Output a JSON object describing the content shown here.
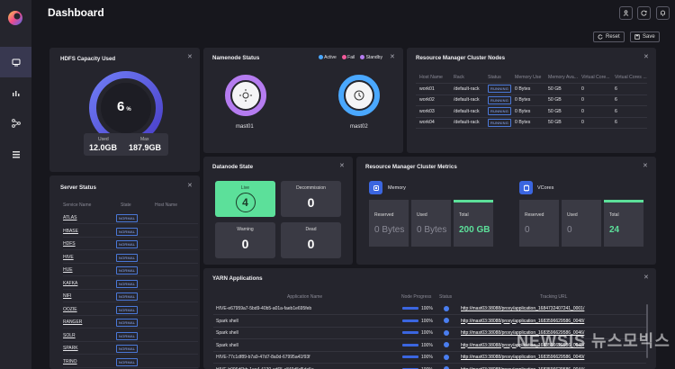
{
  "header": {
    "title": "Dashboard",
    "reset_label": "Reset",
    "save_label": "Save"
  },
  "hdfs": {
    "title": "HDFS Capacity Used",
    "percent": "6",
    "percent_sign": "%",
    "used_label": "Used",
    "used_value": "12.0GB",
    "max_label": "Max",
    "max_value": "187.9GB"
  },
  "namenode": {
    "title": "Namenode Status",
    "legend": [
      {
        "label": "Active",
        "color": "#4aa8ff"
      },
      {
        "label": "Fail",
        "color": "#f25a9a"
      },
      {
        "label": "Standby",
        "color": "#b57cf0"
      }
    ],
    "nodes": [
      {
        "name": "mast01",
        "icon": "sun-icon",
        "color": "#b57cf0"
      },
      {
        "name": "mast02",
        "icon": "clock-icon",
        "color": "#4aa8ff"
      }
    ]
  },
  "rm_nodes": {
    "title": "Resource Manager Cluster Nodes",
    "columns": [
      "Host Name",
      "Rack",
      "Status",
      "Memory Use",
      "Memory Ava...",
      "Virtual Core...",
      "Virtual Cores ..."
    ],
    "rows": [
      [
        "work01",
        "/default-rack",
        "RUNNING",
        "0 Bytes",
        "50 GB",
        "0",
        "6"
      ],
      [
        "work02",
        "/default-rack",
        "RUNNING",
        "0 Bytes",
        "50 GB",
        "0",
        "6"
      ],
      [
        "work03",
        "/default-rack",
        "RUNNING",
        "0 Bytes",
        "50 GB",
        "0",
        "6"
      ],
      [
        "work04",
        "/default-rack",
        "RUNNING",
        "0 Bytes",
        "50 GB",
        "0",
        "6"
      ]
    ]
  },
  "datanode": {
    "title": "Datanode State",
    "live_label": "Live",
    "live_value": "4",
    "decom_label": "Decommission",
    "decom_value": "0",
    "warning_label": "Warning",
    "warning_value": "0",
    "dead_label": "Dead",
    "dead_value": "0"
  },
  "rm_metrics": {
    "title": "Resource Manager Cluster Metrics",
    "memory": {
      "label": "Memory",
      "reserved_label": "Reserved",
      "reserved": "0 Bytes",
      "used_label": "Used",
      "used": "0 Bytes",
      "total_label": "Total",
      "total": "200 GB"
    },
    "vcores": {
      "label": "VCores",
      "reserved_label": "Reserved",
      "reserved": "0",
      "used_label": "Used",
      "used": "0",
      "total_label": "Total",
      "total": "24"
    }
  },
  "server_status": {
    "title": "Server Status",
    "columns": [
      "Service Name",
      "State",
      "Host Name"
    ],
    "rows": [
      {
        "name": "ATLAS",
        "state": "NORMAL"
      },
      {
        "name": "HBASE",
        "state": "NORMAL"
      },
      {
        "name": "HDFS",
        "state": "NORMAL"
      },
      {
        "name": "HIVE",
        "state": "NORMAL"
      },
      {
        "name": "HUE",
        "state": "NORMAL"
      },
      {
        "name": "KAFKA",
        "state": "NORMAL"
      },
      {
        "name": "NIFI",
        "state": "NORMAL"
      },
      {
        "name": "OOZIE",
        "state": "NORMAL"
      },
      {
        "name": "RANGER",
        "state": "NORMAL"
      },
      {
        "name": "SOLR",
        "state": "NORMAL"
      },
      {
        "name": "SPARK",
        "state": "NORMAL"
      },
      {
        "name": "TRINO",
        "state": "NORMAL"
      }
    ]
  },
  "yarn": {
    "title": "YARN Applications",
    "columns": [
      "Application Name",
      "Node Progress",
      "Status",
      "Tracking URL"
    ],
    "rows": [
      {
        "name": "HIVE-e67959a7-5bd9-40b5-a01a-faeb1e695feb",
        "progress": "100%",
        "progress_fraction": 1.0,
        "url": "http://mast03:38088/proxy/application_1684732407241_0001/"
      },
      {
        "name": "Spark shell",
        "progress": "100%",
        "progress_fraction": 1.0,
        "url": "http://mast03:38088/proxy/application_1683596629586_0048/"
      },
      {
        "name": "Spark shell",
        "progress": "100%",
        "progress_fraction": 1.0,
        "url": "http://mast03:38088/proxy/application_1683596629586_0046/"
      },
      {
        "name": "Spark shell",
        "progress": "100%",
        "progress_fraction": 1.0,
        "url": "http://mast03:38088/proxy/application_1683596629586_0045/"
      },
      {
        "name": "HIVE-77c1df89-b7a9-47d7-8a0d-67995a41f93f",
        "progress": "100%",
        "progress_fraction": 1.0,
        "url": "http://mast03:38088/proxy/application_1683596629586_0049/"
      },
      {
        "name": "HIVE-b096d6bb-1ee4-4130-ad65-c849d5d5da5e",
        "progress": "100%",
        "progress_fraction": 1.0,
        "url": "http://mast03:38088/proxy/application_1683596629586_0044/"
      }
    ]
  },
  "watermark": "NEWSIS 뉴스모빅스",
  "colors": {
    "accent": "#4a7ef0",
    "live_green": "#5ce09a",
    "total_green": "#5ce09a"
  }
}
